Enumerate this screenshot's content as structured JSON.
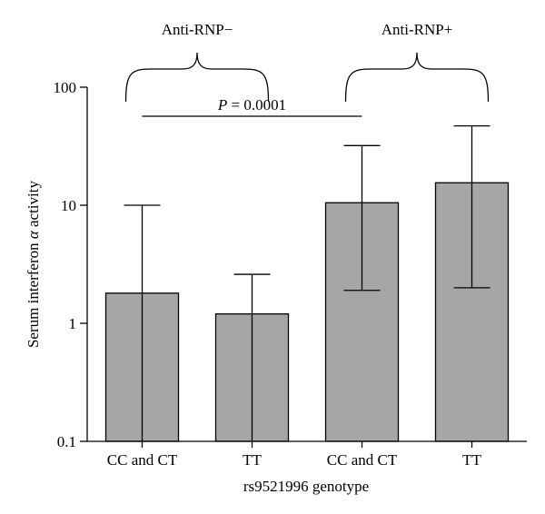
{
  "chart_data": {
    "type": "bar",
    "title": "",
    "xlabel": "rs9521996 genotype",
    "ylabel_prefix": "Serum interferon ",
    "ylabel_symbol": "α",
    "ylabel_suffix": " activity",
    "yscale": "log",
    "ylim": [
      0.1,
      100
    ],
    "yticks": [
      {
        "value": 0.1,
        "label": "0.1"
      },
      {
        "value": 1,
        "label": "1"
      },
      {
        "value": 10,
        "label": "10"
      },
      {
        "value": 100,
        "label": "100"
      }
    ],
    "categories": [
      "CC and CT",
      "TT",
      "CC and CT",
      "TT"
    ],
    "values": [
      1.8,
      1.2,
      10.5,
      15.5
    ],
    "error_upper": [
      10,
      2.6,
      32,
      47
    ],
    "error_lower": [
      0.1,
      0.1,
      1.9,
      2.0
    ],
    "bar_color": "#a6a6a6",
    "groups": [
      {
        "label": "Anti-RNP−",
        "categories": [
          0,
          1
        ]
      },
      {
        "label": "Anti-RNP+",
        "categories": [
          2,
          3
        ]
      }
    ],
    "significance": {
      "from": 0,
      "to": 2,
      "p_symbol": "P",
      "p_value": " = 0.0001"
    },
    "grid": false,
    "legend": "none"
  }
}
